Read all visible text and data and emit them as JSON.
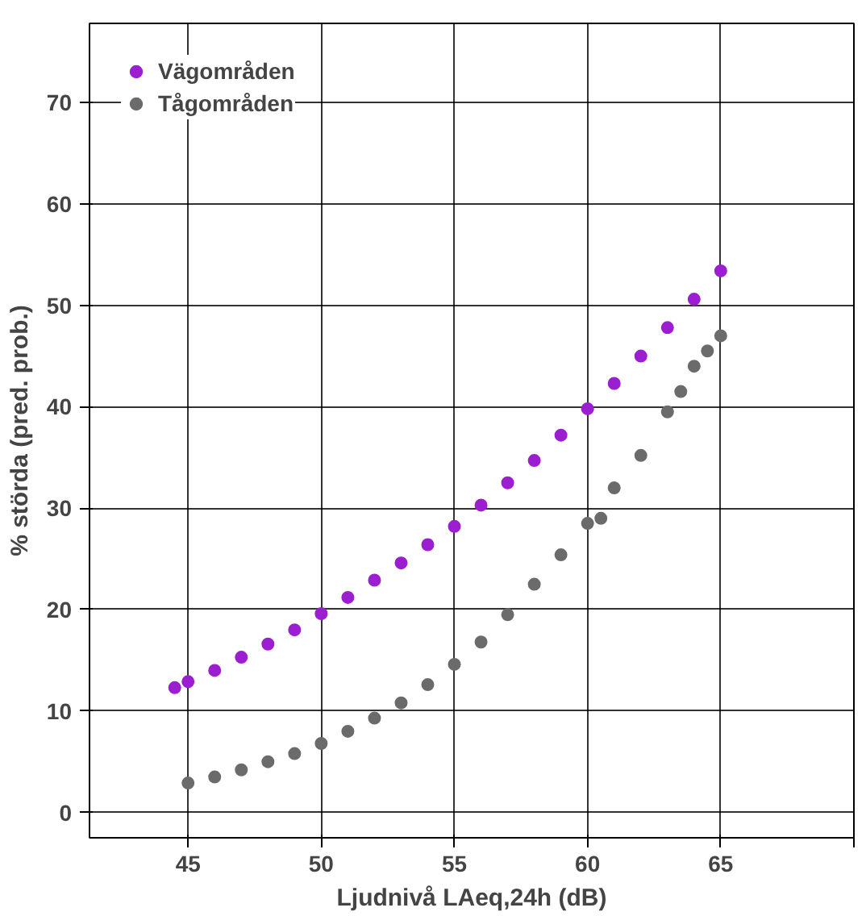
{
  "chart_data": {
    "type": "scatter",
    "xlabel": "Ljudnivå LAeq,24h (dB)",
    "ylabel": "% störda (pred. prob.)",
    "xlim": [
      41.3,
      70
    ],
    "ylim": [
      -2.5,
      77.8
    ],
    "xticks": [
      45,
      50,
      55,
      60,
      65,
      {
        "value": 70,
        "label": null
      }
    ],
    "yticks": [
      0,
      10,
      20,
      30,
      40,
      50,
      60,
      70
    ],
    "grid": true,
    "legend": "top left",
    "marker": "circle",
    "series": [
      {
        "name": "Vägområden",
        "color": "#9b1fd0",
        "x": [
          44.5,
          45,
          46,
          47,
          48,
          49,
          50,
          51,
          52,
          53,
          54,
          55,
          56,
          57,
          58,
          59,
          60,
          61,
          62,
          63,
          64,
          65
        ],
        "values": [
          12.3,
          12.9,
          14.0,
          15.3,
          16.6,
          18.0,
          19.6,
          21.2,
          22.9,
          24.6,
          26.4,
          28.2,
          30.3,
          32.5,
          34.7,
          37.2,
          39.8,
          42.3,
          45.0,
          47.8,
          50.6,
          53.4
        ]
      },
      {
        "name": "Tågområden",
        "color": "#6b6b6b",
        "x": [
          45,
          46,
          47,
          48,
          49,
          50,
          51,
          52,
          53,
          54,
          55,
          56,
          57,
          58,
          59,
          60,
          60.5,
          61,
          62,
          63,
          63.5,
          64,
          64.5,
          65
        ],
        "values": [
          2.9,
          3.5,
          4.2,
          5.0,
          5.8,
          6.8,
          8.0,
          9.3,
          10.8,
          12.6,
          14.6,
          16.8,
          19.5,
          22.5,
          25.4,
          28.5,
          29.0,
          32.0,
          35.2,
          39.5,
          41.5,
          44.0,
          45.5,
          47.0
        ]
      }
    ]
  }
}
